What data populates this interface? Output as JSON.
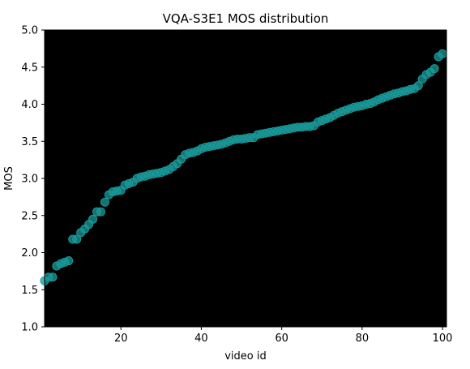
{
  "chart_data": {
    "type": "scatter",
    "title": "VQA-S3E1 MOS distribution",
    "xlabel": "video id",
    "ylabel": "MOS",
    "xlim": [
      1,
      101
    ],
    "ylim": [
      1.0,
      5.0
    ],
    "xticks": [
      20,
      40,
      60,
      80,
      100
    ],
    "xtick_labels": [
      "20",
      "40",
      "60",
      "80",
      "100"
    ],
    "yticks": [
      1.0,
      1.5,
      2.0,
      2.5,
      3.0,
      3.5,
      4.0,
      4.5,
      5.0
    ],
    "ytick_labels": [
      "1.0",
      "1.5",
      "2.0",
      "2.5",
      "3.0",
      "3.5",
      "4.0",
      "4.5",
      "5.0"
    ],
    "grid": false,
    "background_color": "#000000",
    "marker_color": "#1a9a9a",
    "x": [
      1,
      2,
      3,
      4,
      5,
      6,
      7,
      8,
      9,
      10,
      11,
      12,
      13,
      14,
      15,
      16,
      17,
      18,
      19,
      20,
      21,
      22,
      23,
      24,
      25,
      26,
      27,
      28,
      29,
      30,
      31,
      32,
      33,
      34,
      35,
      36,
      37,
      38,
      39,
      40,
      41,
      42,
      43,
      44,
      45,
      46,
      47,
      48,
      49,
      50,
      51,
      52,
      53,
      54,
      55,
      56,
      57,
      58,
      59,
      60,
      61,
      62,
      63,
      64,
      65,
      66,
      67,
      68,
      69,
      70,
      71,
      72,
      73,
      74,
      75,
      76,
      77,
      78,
      79,
      80,
      81,
      82,
      83,
      84,
      85,
      86,
      87,
      88,
      89,
      90,
      91,
      92,
      93,
      94,
      95,
      96,
      97,
      98,
      99,
      100
    ],
    "y": [
      1.62,
      1.67,
      1.67,
      1.82,
      1.85,
      1.87,
      1.89,
      2.18,
      2.18,
      2.27,
      2.32,
      2.38,
      2.45,
      2.55,
      2.55,
      2.68,
      2.78,
      2.82,
      2.83,
      2.84,
      2.91,
      2.93,
      2.95,
      3.0,
      3.02,
      3.03,
      3.05,
      3.06,
      3.07,
      3.08,
      3.1,
      3.12,
      3.16,
      3.2,
      3.26,
      3.32,
      3.34,
      3.35,
      3.37,
      3.4,
      3.42,
      3.43,
      3.44,
      3.45,
      3.46,
      3.48,
      3.5,
      3.52,
      3.53,
      3.53,
      3.54,
      3.55,
      3.55,
      3.59,
      3.6,
      3.61,
      3.62,
      3.63,
      3.64,
      3.65,
      3.66,
      3.67,
      3.68,
      3.69,
      3.69,
      3.7,
      3.7,
      3.71,
      3.76,
      3.78,
      3.8,
      3.82,
      3.85,
      3.88,
      3.9,
      3.92,
      3.94,
      3.96,
      3.97,
      3.98,
      4.0,
      4.01,
      4.03,
      4.06,
      4.08,
      4.1,
      4.12,
      4.14,
      4.15,
      4.17,
      4.18,
      4.2,
      4.21,
      4.25,
      4.34,
      4.4,
      4.43,
      4.48,
      4.64,
      4.68
    ]
  }
}
